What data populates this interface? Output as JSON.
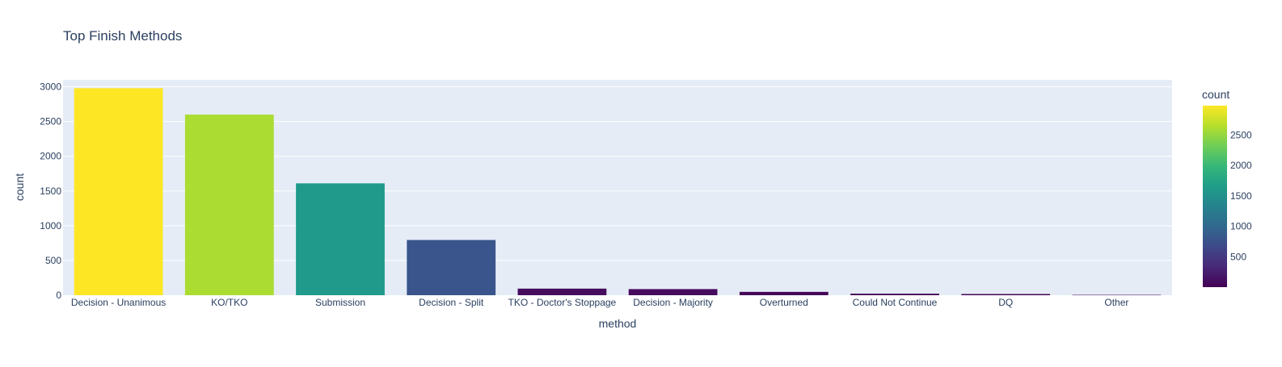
{
  "chart_data": {
    "type": "bar",
    "title": "Top Finish Methods",
    "xlabel": "method",
    "ylabel": "count",
    "categories": [
      "Decision - Unanimous",
      "KO/TKO",
      "Submission",
      "Decision - Split",
      "TKO - Doctor's Stoppage",
      "Decision - Majority",
      "Overturned",
      "Could Not Continue",
      "DQ",
      "Other"
    ],
    "values": [
      2980,
      2600,
      1610,
      795,
      95,
      88,
      48,
      22,
      17,
      5
    ],
    "ylim": [
      0,
      3100
    ],
    "yticks": [
      0,
      500,
      1000,
      1500,
      2000,
      2500,
      3000
    ],
    "grid": true,
    "colorscale": "viridis",
    "colors": {
      "plot_bg": "#e5ecf6",
      "grid": "#ffffff",
      "text": "#2a3f5f",
      "viridis": [
        "#440154",
        "#482878",
        "#3e4989",
        "#31688e",
        "#26828e",
        "#1f9e89",
        "#35b779",
        "#6ece58",
        "#b5de2b",
        "#fde725"
      ]
    },
    "colorbar": {
      "title": "count",
      "range": [
        5,
        2980
      ],
      "ticks": [
        500,
        1000,
        1500,
        2000,
        2500
      ]
    }
  }
}
